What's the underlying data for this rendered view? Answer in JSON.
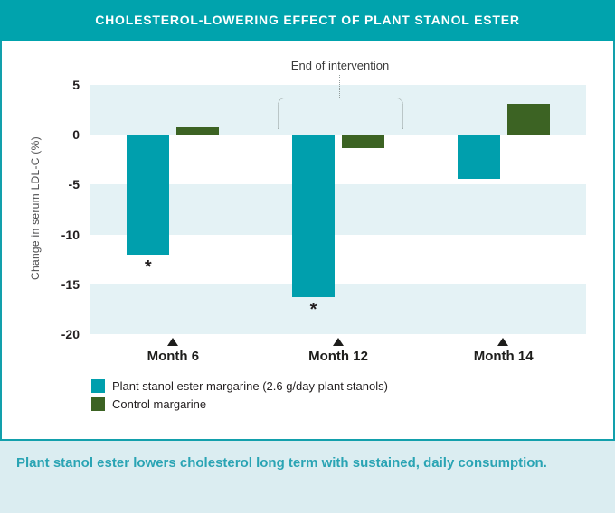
{
  "header": {
    "title": "CHOLESTEROL-LOWERING EFFECT OF PLANT STANOL ESTER"
  },
  "chart_data": {
    "type": "bar",
    "title": "Cholesterol-lowering effect of plant stanol ester",
    "ylabel": "Change in serum LDL-C (%)",
    "xlabel": "",
    "ylim": [
      -20,
      5
    ],
    "yticks": [
      5,
      0,
      -5,
      -10,
      -15,
      -20
    ],
    "grid": "banded",
    "legend_position": "bottom",
    "categories": [
      "Month 6",
      "Month 12",
      "Month 14"
    ],
    "series": [
      {
        "name": "Plant stanol ester margarine (2.6 g/day plant stanols)",
        "color": "#009fad",
        "values": [
          -12,
          -16.3,
          -4.4
        ],
        "significant": [
          true,
          true,
          false
        ]
      },
      {
        "name": "Control margarine",
        "color": "#3c6323",
        "values": [
          0.7,
          -1.3,
          3.1
        ],
        "significant": [
          false,
          false,
          false
        ]
      }
    ],
    "annotation": {
      "label": "End of intervention",
      "target": "Month 12"
    }
  },
  "caption": {
    "text": "Plant stanol ester lowers cholesterol long term with sustained, daily consumption."
  },
  "colors": {
    "header_bg": "#00a3ad",
    "band": "#e4f2f5",
    "caption_bg": "#dbedf1",
    "caption_text": "#2aa4b4",
    "border": "#12a0ac",
    "text_dark": "#231f20",
    "bracket": "#8f9a99"
  }
}
